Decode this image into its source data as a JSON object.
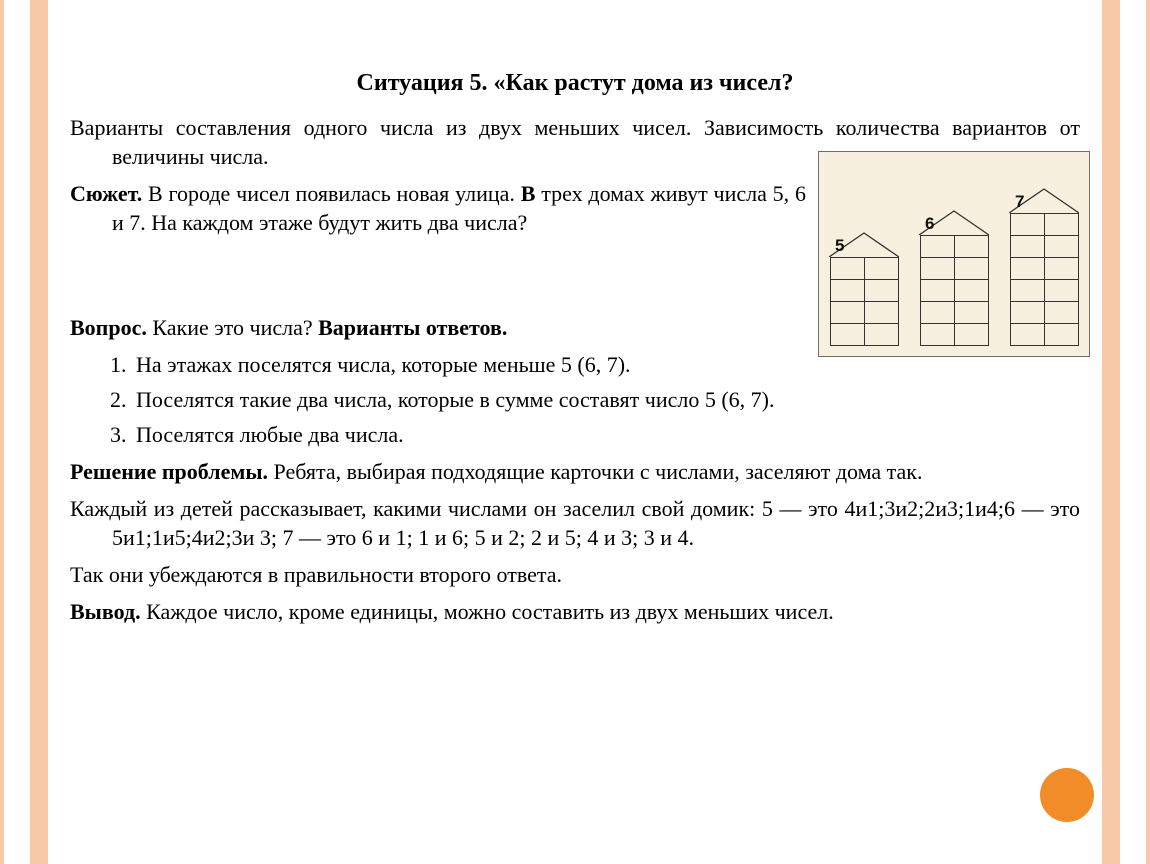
{
  "title": "Ситуация 5. «Как растут дома из чисел?",
  "intro": "Варианты составления одного числа из двух меньших чисел. Зависимость количества вариантов от величины числа.",
  "plot_label": "Сюжет. ",
  "plot_a": "В городе чисел появилась новая улица. ",
  "plot_b_bold": "В ",
  "plot_b": "трех домах живут числа 5, 6 и 7. На каждом этаже будут жить два числа?",
  "question_label": "Вопрос. ",
  "question_body": "Какие это числа? ",
  "answers_label": "Варианты ответов.",
  "answers": [
    "На этажах поселятся числа, которые меньше 5 (6, 7).",
    "Поселятся такие два числа, которые в сумме составят число 5 (6, 7).",
    "Поселятся любые два числа."
  ],
  "solution_label": "Решение проблемы. ",
  "solution_body": "Ребята, выбирая подходящие карточки с числами, заселяют дома так.",
  "detail": "Каждый из детей рассказывает, какими числами он заселил свой домик: 5 — это 4и1;3и2;2и3;1и4;6 — это 5и1;1и5;4и2;3и 3; 7 — это 6 и 1; 1 и 6; 5 и 2; 2 и 5; 4 и 3; 3 и 4.",
  "check": "Так они убеждаются в правильности второго ответа.",
  "conclusion_label": "Вывод. ",
  "conclusion_body": "Каждое число, кроме единицы, можно составить из двух меньших чисел.",
  "houses": {
    "background_color": "#f7f0df",
    "line_color": "#333333",
    "items": [
      {
        "number": "5",
        "floors": 4
      },
      {
        "number": "6",
        "floors": 5
      },
      {
        "number": "7",
        "floors": 6
      }
    ]
  },
  "accent_color": "#f28c28",
  "stripe_color": "#f7c9a8"
}
